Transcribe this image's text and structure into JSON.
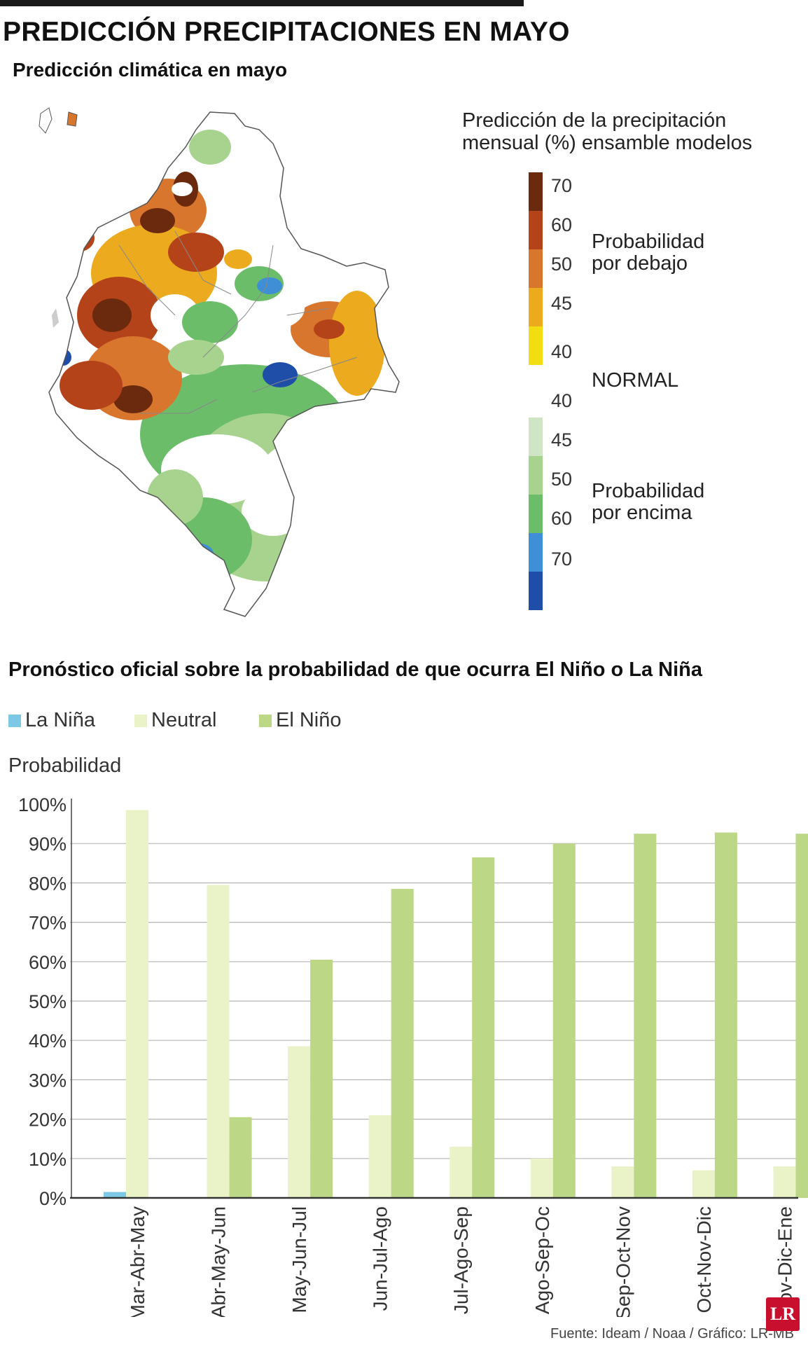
{
  "header": {
    "title": "PREDICCIÓN PRECIPITACIONES EN MAYO",
    "subtitle": "Predicción climática en mayo"
  },
  "map_legend": {
    "title_line1": "Predicción de la precipitación",
    "title_line2": "mensual (%) ensamble modelos",
    "ticks": [
      "70",
      "60",
      "50",
      "45",
      "40",
      "40",
      "45",
      "50",
      "60",
      "70"
    ],
    "below_line1": "Probabilidad",
    "below_line2": "por debajo",
    "normal": "NORMAL",
    "above_line1": "Probabilidad",
    "above_line2": "por encima",
    "scale_colors": [
      "#6b2a0e",
      "#b5431a",
      "#d9762e",
      "#ecab1e",
      "#f2dc12",
      "#ffffff",
      "#cfe5c6",
      "#a8d38f",
      "#6cbd6a",
      "#3f8fd6",
      "#1e4ea8"
    ]
  },
  "chart_section": {
    "title": "Pronóstico oficial sobre la probabilidad de que ocurra El Niño o La Niña",
    "ylabel": "Probabilidad",
    "source": "Fuente: Ideam / Noaa / Gráfico: LR-MB",
    "logo": "LR"
  },
  "chart_data": {
    "type": "bar",
    "categories": [
      "Mar-Abr-May",
      "Abr-May-Jun",
      "May-Jun-Jul",
      "Jun-Jul-Ago",
      "Jul-Ago-Sep",
      "Ago-Sep-Oc",
      "Sep-Oct-Nov",
      "Oct-Nov-Dic",
      "Nov-Dic-Ene"
    ],
    "series": [
      {
        "name": "La Niña",
        "color": "#7dc8e4",
        "values": [
          1.5,
          0,
          0,
          0,
          0,
          0,
          0,
          0,
          0
        ]
      },
      {
        "name": "Neutral",
        "color": "#eaf2c8",
        "values": [
          98.5,
          79.5,
          38.5,
          21,
          13,
          10,
          8,
          7,
          8
        ]
      },
      {
        "name": "El Niño",
        "color": "#bcd786",
        "values": [
          0,
          20.5,
          60.5,
          78.5,
          86.5,
          90,
          92.5,
          92.8,
          92.5
        ]
      }
    ],
    "ylim": [
      0,
      100
    ],
    "yticks": [
      "0%",
      "10%",
      "20%",
      "30%",
      "40%",
      "50%",
      "60%",
      "70%",
      "80%",
      "90%",
      "100%"
    ],
    "grid": true,
    "legend": "top-left"
  }
}
